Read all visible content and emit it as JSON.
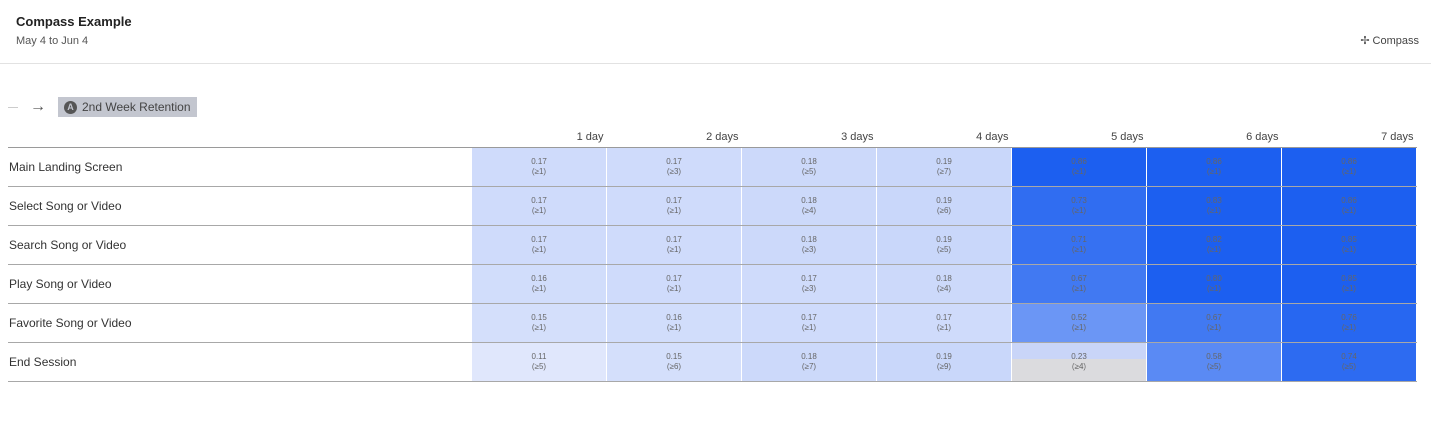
{
  "header": {
    "title": "Compass Example",
    "date_range": "May 4 to Jun 4",
    "compass_label": "Compass",
    "compass_icon": "sparkle-icon"
  },
  "breadcrumb": {
    "event_label": "2nd Week Retention",
    "event_icon": "event-icon"
  },
  "colors": {
    "low": "#e8edfc",
    "high": "#1c5ff0"
  },
  "table": {
    "columns": [
      "1 day",
      "2 days",
      "3 days",
      "4 days",
      "5 days",
      "6 days",
      "7 days"
    ],
    "rows": [
      {
        "label": "Main Landing Screen",
        "cells": [
          [
            "0.17",
            "(≥1)"
          ],
          [
            "0.17",
            "(≥3)"
          ],
          [
            "0.18",
            "(≥5)"
          ],
          [
            "0.19",
            "(≥7)"
          ],
          [
            "0.86",
            "(≥1)"
          ],
          [
            "0.86",
            "(≥1)"
          ],
          [
            "0.86",
            "(≥1)"
          ]
        ]
      },
      {
        "label": "Select Song or Video",
        "cells": [
          [
            "0.17",
            "(≥1)"
          ],
          [
            "0.17",
            "(≥1)"
          ],
          [
            "0.18",
            "(≥4)"
          ],
          [
            "0.19",
            "(≥6)"
          ],
          [
            "0.73",
            "(≥1)"
          ],
          [
            "0.83",
            "(≥1)"
          ],
          [
            "0.86",
            "(≥1)"
          ]
        ]
      },
      {
        "label": "Search Song or Video",
        "cells": [
          [
            "0.17",
            "(≥1)"
          ],
          [
            "0.17",
            "(≥1)"
          ],
          [
            "0.18",
            "(≥3)"
          ],
          [
            "0.19",
            "(≥5)"
          ],
          [
            "0.71",
            "(≥1)"
          ],
          [
            "0.82",
            "(≥1)"
          ],
          [
            "0.85",
            "(≥1)"
          ]
        ]
      },
      {
        "label": "Play Song or Video",
        "cells": [
          [
            "0.16",
            "(≥1)"
          ],
          [
            "0.17",
            "(≥1)"
          ],
          [
            "0.17",
            "(≥3)"
          ],
          [
            "0.18",
            "(≥4)"
          ],
          [
            "0.67",
            "(≥1)"
          ],
          [
            "0.80",
            "(≥1)"
          ],
          [
            "0.85",
            "(≥1)"
          ]
        ]
      },
      {
        "label": "Favorite Song or Video",
        "cells": [
          [
            "0.15",
            "(≥1)"
          ],
          [
            "0.16",
            "(≥1)"
          ],
          [
            "0.17",
            "(≥1)"
          ],
          [
            "0.17",
            "(≥1)"
          ],
          [
            "0.52",
            "(≥1)"
          ],
          [
            "0.67",
            "(≥1)"
          ],
          [
            "0.76",
            "(≥1)"
          ]
        ]
      },
      {
        "label": "End Session",
        "cells": [
          [
            "0.11",
            "(≥5)"
          ],
          [
            "0.15",
            "(≥6)"
          ],
          [
            "0.18",
            "(≥7)"
          ],
          [
            "0.19",
            "(≥9)"
          ],
          [
            "0.23",
            "(≥4)"
          ],
          [
            "0.58",
            "(≥5)"
          ],
          [
            "0.74",
            "(≥5)"
          ]
        ]
      }
    ]
  }
}
